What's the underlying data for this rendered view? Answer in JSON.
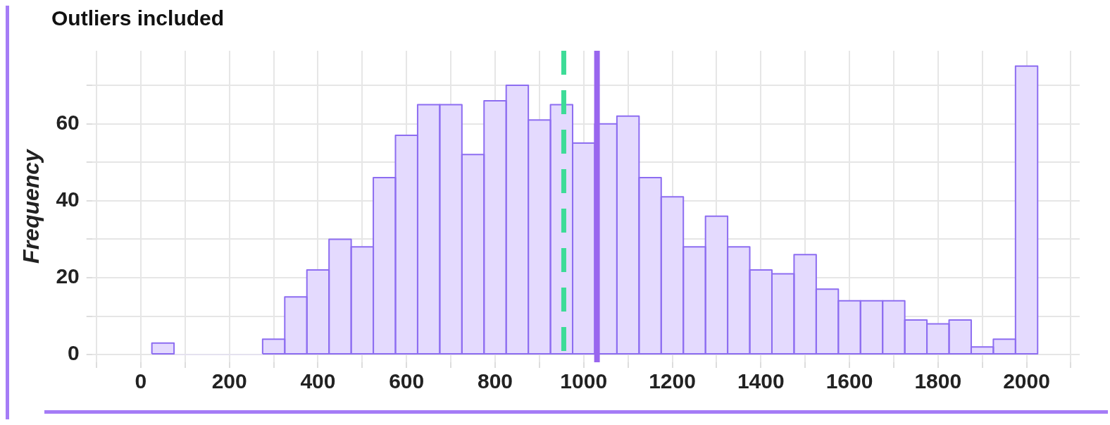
{
  "chart_data": {
    "type": "histogram",
    "title": "Outliers included",
    "ylabel": "Frequency",
    "bins": [
      25,
      75,
      125,
      175,
      225,
      275,
      325,
      375,
      425,
      475,
      525,
      575,
      625,
      675,
      725,
      775,
      825,
      875,
      925,
      975,
      1025,
      1075,
      1125,
      1175,
      1225,
      1275,
      1325,
      1375,
      1425,
      1475,
      1525,
      1575,
      1625,
      1675,
      1725,
      1775,
      1825,
      1875,
      1925,
      1975,
      2025
    ],
    "values": [
      3,
      0,
      0,
      0,
      0,
      4,
      15,
      22,
      30,
      28,
      46,
      57,
      65,
      65,
      52,
      66,
      70,
      61,
      65,
      55,
      60,
      62,
      46,
      41,
      28,
      36,
      28,
      22,
      21,
      26,
      17,
      14,
      14,
      14,
      9,
      8,
      9,
      2,
      4,
      75
    ],
    "color": "#e4dafe",
    "xlim": [
      -110,
      2120
    ],
    "xticks": [
      {
        "value": -100,
        "label": null
      },
      0,
      {
        "value": 100,
        "label": null
      },
      200,
      {
        "value": 300,
        "label": null
      },
      400,
      {
        "value": 500,
        "label": null
      },
      600,
      {
        "value": 700,
        "label": null
      },
      800,
      {
        "value": 900,
        "label": null
      },
      1000,
      {
        "value": 1100,
        "label": null
      },
      1200,
      {
        "value": 1300,
        "label": null
      },
      1400,
      {
        "value": 1500,
        "label": null
      },
      1600,
      {
        "value": 1700,
        "label": null
      },
      1800,
      {
        "value": 1900,
        "label": null
      },
      2000,
      {
        "value": 2100,
        "label": null
      }
    ],
    "ylim": [
      -2,
      79
    ],
    "yticks": [
      0,
      {
        "value": 10,
        "label": null
      },
      20,
      {
        "value": 30,
        "label": null
      },
      40,
      {
        "value": 50,
        "label": null
      },
      60,
      {
        "value": 70,
        "label": null
      }
    ],
    "grid": true,
    "legend": false,
    "ref_lines": [
      {
        "axis": "x",
        "value": 955,
        "color": "#3ddc97",
        "line_style": "dashed"
      },
      {
        "axis": "x",
        "value": 1030,
        "color": "#9966ee",
        "line_style": "solid"
      }
    ]
  }
}
